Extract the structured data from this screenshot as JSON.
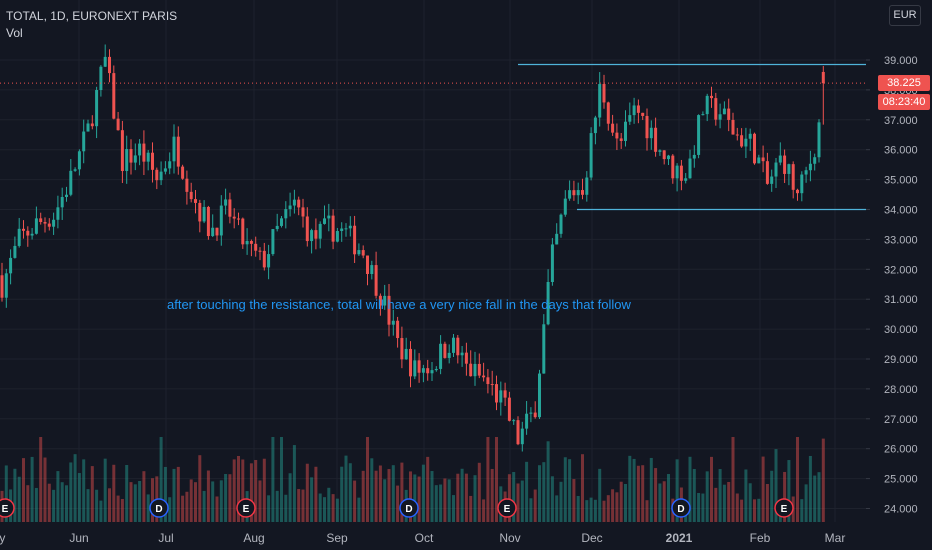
{
  "chart_header": {
    "symbol_line": "TOTAL, 1D, EURONEXT PARIS",
    "indicator": "Vol"
  },
  "currency_button": "EUR",
  "annotation": "after touching the resistance, total will have a very nice fall in the days that follow",
  "last_price_label": "38.225",
  "countdown_label": "08:23:40",
  "colors": {
    "background": "#131722",
    "up": "#26a69a",
    "down": "#ef5350",
    "line": "#2196f3",
    "price_line": "#ef5350"
  },
  "icons": [
    "earnings-event-icon",
    "dividend-event-icon"
  ],
  "chart_data": {
    "type": "candlestick",
    "symbol": "TOTAL",
    "interval": "1D",
    "exchange": "EURONEXT PARIS",
    "currency": "EUR",
    "y_ticks": [
      "39.000",
      "38.000",
      "37.000",
      "36.000",
      "35.000",
      "34.000",
      "33.000",
      "32.000",
      "31.000",
      "30.000",
      "29.000",
      "28.000",
      "27.000",
      "26.000",
      "25.000",
      "24.000"
    ],
    "y_range": [
      23.6,
      40.3
    ],
    "x_ticks": [
      "May",
      "Jun",
      "Jul",
      "Aug",
      "Sep",
      "Oct",
      "Nov",
      "Dec",
      "2021",
      "Feb",
      "Mar"
    ],
    "last_price": 38.225,
    "resistance_line": 38.85,
    "support_line": 34.0,
    "events": [
      {
        "type": "E",
        "month": "May"
      },
      {
        "type": "D",
        "month": "Jul"
      },
      {
        "type": "E",
        "month": "Aug"
      },
      {
        "type": "D",
        "month": "Oct"
      },
      {
        "type": "E",
        "month": "Nov"
      },
      {
        "type": "D",
        "month": "2021"
      },
      {
        "type": "E",
        "month": "Feb"
      }
    ],
    "anchors": [
      [
        "May",
        31.5
      ],
      [
        "May",
        33.0
      ],
      [
        "May",
        33.5
      ],
      [
        "May",
        33.8
      ],
      [
        "May",
        35.0
      ],
      [
        "Jun",
        36.6
      ],
      [
        "Jun",
        39.0
      ],
      [
        "Jun",
        35.6
      ],
      [
        "Jun",
        36.0
      ],
      [
        "Jun",
        35.0
      ],
      [
        "Jul",
        36.2
      ],
      [
        "Jul",
        34.5
      ],
      [
        "Jul",
        33.3
      ],
      [
        "Jul",
        34.0
      ],
      [
        "Jul",
        32.8
      ],
      [
        "Aug",
        32.2
      ],
      [
        "Aug",
        33.4
      ],
      [
        "Aug",
        34.2
      ],
      [
        "Aug",
        33.0
      ],
      [
        "Aug",
        33.4
      ],
      [
        "Sep",
        33.2
      ],
      [
        "Sep",
        32.6
      ],
      [
        "Sep",
        31.2
      ],
      [
        "Sep",
        29.5
      ],
      [
        "Sep",
        28.6
      ],
      [
        "Oct",
        28.8
      ],
      [
        "Oct",
        29.6
      ],
      [
        "Oct",
        28.7
      ],
      [
        "Oct",
        28.3
      ],
      [
        "Oct",
        27.6
      ],
      [
        "Nov",
        26.3
      ],
      [
        "Nov",
        27.3
      ],
      [
        "Nov",
        32.2
      ],
      [
        "Nov",
        34.5
      ],
      [
        "Nov",
        34.8
      ],
      [
        "Dec",
        38.2
      ],
      [
        "Dec",
        36.0
      ],
      [
        "Dec",
        37.4
      ],
      [
        "Dec",
        36.5
      ],
      [
        "Dec",
        35.4
      ],
      [
        "2021",
        35.2
      ],
      [
        "2021",
        37.4
      ],
      [
        "2021",
        37.3
      ],
      [
        "2021",
        36.5
      ],
      [
        "2021",
        36.2
      ],
      [
        "Feb",
        34.8
      ],
      [
        "Feb",
        35.8
      ],
      [
        "Feb",
        34.4
      ],
      [
        "Feb",
        35.8
      ],
      [
        "Feb",
        38.2
      ]
    ],
    "volume_shown": true,
    "grid": true
  }
}
